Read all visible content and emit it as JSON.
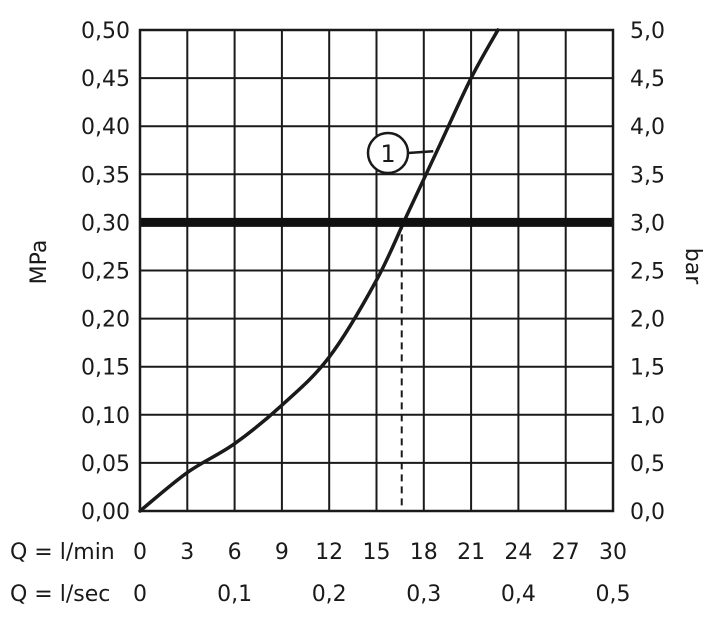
{
  "chart_data": {
    "type": "line",
    "title": "",
    "left_axis": {
      "label": "MPa",
      "ticks": [
        "0,00",
        "0,05",
        "0,10",
        "0,15",
        "0,20",
        "0,25",
        "0,30",
        "0,35",
        "0,40",
        "0,45",
        "0,50"
      ],
      "tick_values": [
        0,
        0.05,
        0.1,
        0.15,
        0.2,
        0.25,
        0.3,
        0.35,
        0.4,
        0.45,
        0.5
      ],
      "range": [
        0,
        0.5
      ]
    },
    "right_axis": {
      "label": "bar",
      "ticks": [
        "0,0",
        "0,5",
        "1,0",
        "1,5",
        "2,0",
        "2,5",
        "3,0",
        "3,5",
        "4,0",
        "4,5",
        "5,0"
      ],
      "range": [
        0,
        5
      ]
    },
    "bottom_axis_lmin": {
      "label": "Q = l/min",
      "ticks": [
        "0",
        "3",
        "6",
        "9",
        "12",
        "15",
        "18",
        "21",
        "24",
        "27",
        "30"
      ],
      "tick_values": [
        0,
        3,
        6,
        9,
        12,
        15,
        18,
        21,
        24,
        27,
        30
      ],
      "range": [
        0,
        30
      ]
    },
    "bottom_axis_lsec": {
      "label": "Q = l/sec",
      "ticks": [
        "0",
        "0,1",
        "0,2",
        "0,3",
        "0,4",
        "0,5"
      ],
      "tick_values_lmin": [
        0,
        6,
        12,
        18,
        24,
        30
      ]
    },
    "grid": true,
    "series": [
      {
        "name": "1",
        "x": [
          0,
          3,
          6,
          9,
          12,
          15,
          17,
          19,
          21,
          22.7
        ],
        "y": [
          0,
          0.04,
          0.07,
          0.11,
          0.16,
          0.24,
          0.31,
          0.38,
          0.45,
          0.5
        ]
      }
    ],
    "reference_line": {
      "y": 0.3
    },
    "reference_marker": {
      "x": 16.6,
      "y": 0.3
    },
    "annotation": {
      "label": "1"
    }
  }
}
